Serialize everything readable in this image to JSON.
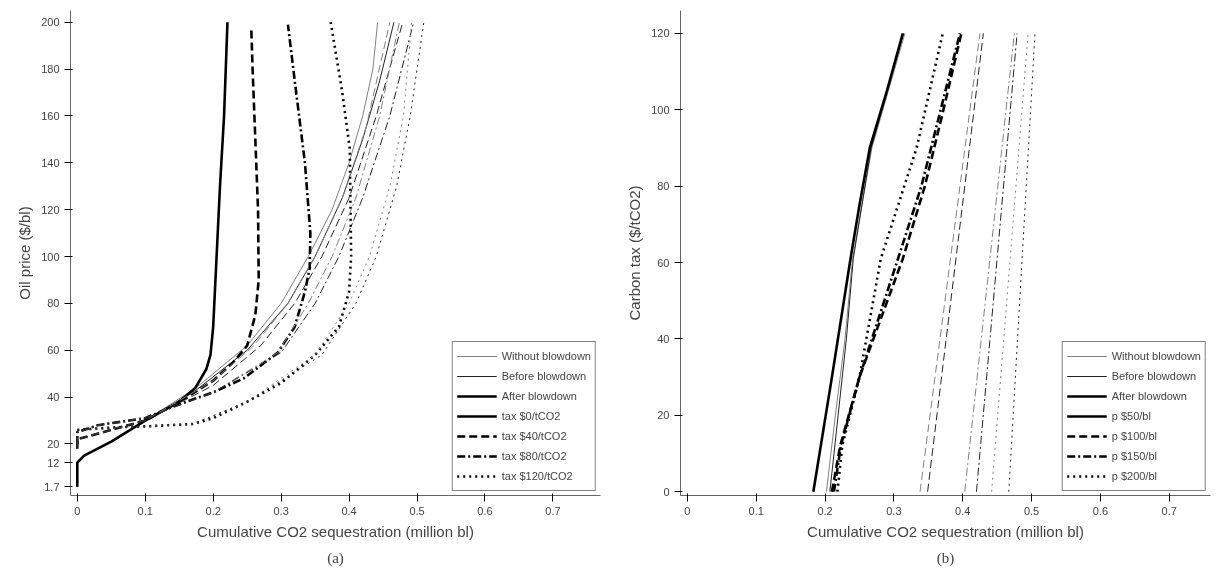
{
  "chart_data": [
    {
      "type": "line",
      "xlabel": "Cumulative CO2 sequestration (million bl)",
      "ylabel": "Oil price ($/bl)",
      "annotations": [
        "(a)"
      ],
      "xlim": [
        -0.01,
        0.77
      ],
      "ylim": [
        -2,
        205
      ],
      "xticks": [
        0,
        0.1,
        0.2,
        0.3,
        0.4,
        0.5,
        0.6,
        0.7
      ],
      "yticks": [
        1.7,
        12,
        20,
        40,
        60,
        80,
        100,
        120,
        140,
        160,
        180,
        200
      ],
      "grid": false,
      "legend": "bottom right",
      "series": [
        {
          "name": "Without blowdown",
          "color": "#808080",
          "line_style": "solid",
          "x": [
            0,
            0,
            0.01,
            0.05,
            0.1,
            0.175,
            0.25,
            0.3,
            0.34,
            0.375,
            0.4,
            0.42,
            0.435,
            0.442
          ],
          "values": [
            1.7,
            12,
            15,
            21,
            30,
            44,
            62,
            80,
            100,
            120,
            140,
            160,
            180,
            200
          ]
        },
        {
          "name": "Before blowdown",
          "color": "#222222",
          "line_style": "solid",
          "x": [
            0,
            0,
            0.01,
            0.05,
            0.1,
            0.175,
            0.25,
            0.31,
            0.35,
            0.39,
            0.42,
            0.445,
            0.466
          ],
          "values": [
            1.7,
            12,
            15,
            21,
            30,
            43,
            60,
            80,
            100,
            125,
            150,
            175,
            200
          ]
        },
        {
          "name": [
            "After blowdown",
            "tax $0/tCO2"
          ],
          "color": "#000000",
          "line_style": "solid",
          "x": [
            0,
            0,
            0.01,
            0.05,
            0.1,
            0.15,
            0.174,
            0.19,
            0.196,
            0.2,
            0.205,
            0.21,
            0.216,
            0.221
          ],
          "values": [
            1.7,
            12,
            15,
            21,
            30,
            38,
            44,
            52,
            58,
            70,
            100,
            130,
            160,
            200
          ]
        },
        {
          "name": "tax $40/tCO2",
          "color": "#000000",
          "line_style": "dashed",
          "x": [
            0,
            0,
            0.05,
            0.1,
            0.15,
            0.2,
            0.23,
            0.25,
            0.262,
            0.267,
            0.266,
            0.262,
            0.258,
            0.256
          ],
          "values": [
            18,
            22,
            26,
            30,
            38,
            47,
            55,
            62,
            75,
            90,
            120,
            150,
            180,
            198
          ]
        },
        {
          "name": "tax $80/tCO2",
          "color": "#000000",
          "line_style": "dashdot",
          "x": [
            0,
            0,
            0.03,
            0.1,
            0.14,
            0.2,
            0.245,
            0.295,
            0.32,
            0.335,
            0.342,
            0.343,
            0.335,
            0.32,
            0.31
          ],
          "values": [
            20,
            25,
            28,
            31,
            36,
            42,
            48,
            59,
            70,
            85,
            95,
            110,
            140,
            175,
            199
          ]
        },
        {
          "name": "tax $120/tCO2",
          "color": "#000000",
          "line_style": "dotted",
          "x": [
            0,
            0.05,
            0.1,
            0.17,
            0.2,
            0.25,
            0.3,
            0.35,
            0.385,
            0.4,
            0.403,
            0.401,
            0.39,
            0.373
          ],
          "values": [
            26,
            27,
            27.5,
            28.5,
            31,
            38,
            46,
            58,
            70,
            85,
            100,
            146,
            170,
            200
          ]
        },
        {
          "color": "#808080",
          "line_style": "dashed",
          "x": [
            0,
            0,
            0.05,
            0.1,
            0.2,
            0.26,
            0.31,
            0.35,
            0.39,
            0.425,
            0.46
          ],
          "values": [
            18,
            22,
            26,
            30,
            47,
            62,
            80,
            100,
            125,
            155,
            200
          ]
        },
        {
          "color": "#222222",
          "line_style": "dashed",
          "x": [
            0,
            0,
            0.05,
            0.1,
            0.2,
            0.27,
            0.32,
            0.36,
            0.4,
            0.44,
            0.479
          ],
          "values": [
            18,
            22,
            26,
            30,
            45,
            62,
            80,
            100,
            125,
            160,
            200
          ]
        },
        {
          "color": "#808080",
          "line_style": "dashdot",
          "x": [
            0,
            0,
            0.03,
            0.1,
            0.2,
            0.295,
            0.34,
            0.375,
            0.41,
            0.445,
            0.474
          ],
          "values": [
            20,
            25,
            28,
            31,
            42,
            59,
            80,
            100,
            125,
            160,
            200
          ]
        },
        {
          "color": "#222222",
          "line_style": "dashdot",
          "x": [
            0,
            0,
            0.03,
            0.1,
            0.2,
            0.3,
            0.35,
            0.385,
            0.42,
            0.46,
            0.495
          ],
          "values": [
            20,
            25,
            28,
            31,
            42,
            59,
            80,
            100,
            125,
            160,
            200
          ]
        },
        {
          "color": "#808080",
          "line_style": "dotted",
          "x": [
            0,
            0.1,
            0.17,
            0.25,
            0.35,
            0.4,
            0.43,
            0.46,
            0.48,
            0.492
          ],
          "values": [
            26,
            27.5,
            28.5,
            38,
            58,
            80,
            100,
            130,
            160,
            200
          ]
        },
        {
          "color": "#222222",
          "line_style": "dotted",
          "x": [
            0,
            0.1,
            0.17,
            0.25,
            0.36,
            0.41,
            0.44,
            0.47,
            0.49,
            0.51
          ],
          "values": [
            26,
            27.5,
            28.5,
            38,
            58,
            80,
            100,
            130,
            160,
            200
          ]
        }
      ]
    },
    {
      "type": "line",
      "xlabel": "Cumulative CO2 sequestration (million bl)",
      "ylabel": "Carbon tax ($/tCO2)",
      "annotations": [
        "(b)"
      ],
      "xlim": [
        -0.01,
        0.76
      ],
      "ylim": [
        -1,
        126
      ],
      "xticks": [
        0,
        0.1,
        0.2,
        0.3,
        0.4,
        0.5,
        0.6,
        0.7
      ],
      "yticks": [
        0,
        20,
        40,
        60,
        80,
        100,
        120
      ],
      "grid": false,
      "legend": "bottom right",
      "series": [
        {
          "name": "Without blowdown",
          "color": "#808080",
          "line_style": "solid",
          "x": [
            0.202,
            0.215,
            0.229,
            0.24,
            0.268,
            0.316
          ],
          "values": [
            0,
            20,
            40,
            61,
            90,
            120
          ]
        },
        {
          "name": "Before blowdown",
          "color": "#222222",
          "line_style": "solid",
          "x": [
            0.207,
            0.219,
            0.231,
            0.241,
            0.267,
            0.314
          ],
          "values": [
            0,
            20,
            40,
            61,
            90,
            120
          ]
        },
        {
          "name": [
            "After blowdown",
            "p $50/bl"
          ],
          "color": "#000000",
          "line_style": "solid",
          "x": [
            0.183,
            0.21,
            0.237,
            0.25,
            0.265,
            0.29,
            0.313
          ],
          "values": [
            0,
            30,
            61,
            75,
            90,
            105,
            120
          ]
        },
        {
          "name": "p $100/bl",
          "color": "#000000",
          "line_style": "dashed",
          "x": [
            0.21,
            0.222,
            0.25,
            0.313,
            0.345,
            0.372,
            0.398
          ],
          "values": [
            0,
            12,
            30,
            61,
            80,
            100,
            120
          ]
        },
        {
          "name": "p $150/bl",
          "color": "#000000",
          "line_style": "dashdot",
          "x": [
            0.213,
            0.223,
            0.25,
            0.306,
            0.34,
            0.368,
            0.396
          ],
          "values": [
            0,
            12,
            30,
            61,
            80,
            100,
            120
          ]
        },
        {
          "name": "p $200/bl",
          "color": "#000000",
          "line_style": "dotted",
          "x": [
            0.218,
            0.225,
            0.25,
            0.281,
            0.333,
            0.371
          ],
          "values": [
            0,
            12,
            30,
            61,
            90,
            120
          ]
        },
        {
          "color": "#808080",
          "line_style": "dashed",
          "x": [
            0.338,
            0.425
          ],
          "values": [
            0,
            120
          ]
        },
        {
          "color": "#222222",
          "line_style": "dashed",
          "x": [
            0.349,
            0.43
          ],
          "values": [
            0,
            120
          ]
        },
        {
          "color": "#808080",
          "line_style": "dashdot",
          "x": [
            0.403,
            0.475
          ],
          "values": [
            0,
            120
          ]
        },
        {
          "color": "#222222",
          "line_style": "dashdot",
          "x": [
            0.42,
            0.479
          ],
          "values": [
            0,
            120
          ]
        },
        {
          "color": "#808080",
          "line_style": "dotted",
          "x": [
            0.442,
            0.495
          ],
          "values": [
            0,
            120
          ]
        },
        {
          "color": "#222222",
          "line_style": "dotted",
          "x": [
            0.467,
            0.505
          ],
          "values": [
            0,
            120
          ]
        }
      ]
    }
  ]
}
